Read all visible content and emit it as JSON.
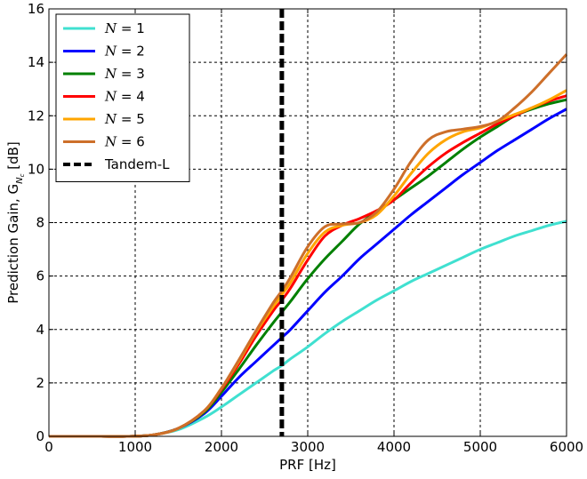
{
  "chart_data": {
    "type": "line",
    "xlabel": "PRF [Hz]",
    "ylabel": "Prediction Gain, G",
    "ylabel_subscript": "N",
    "ylabel_subsubscript": "c",
    "ylabel_unit": " [dB]",
    "xlim": [
      0,
      6000
    ],
    "ylim": [
      0,
      16
    ],
    "xticks": [
      0,
      1000,
      2000,
      3000,
      4000,
      5000,
      6000
    ],
    "yticks": [
      0,
      2,
      4,
      6,
      8,
      10,
      12,
      14,
      16
    ],
    "grid": true,
    "legend_position": "top-left",
    "x": [
      0,
      300,
      600,
      900,
      1200,
      1500,
      1800,
      2000,
      2200,
      2400,
      2600,
      2700,
      2800,
      3000,
      3200,
      3400,
      3600,
      3800,
      4000,
      4200,
      4400,
      4600,
      4800,
      5000,
      5200,
      5400,
      5600,
      5800,
      6000
    ],
    "series": [
      {
        "name": "N = 1",
        "color": "#40e0d0",
        "values": [
          0,
          0,
          0,
          0,
          0.05,
          0.25,
          0.7,
          1.1,
          1.55,
          2.0,
          2.45,
          2.65,
          2.9,
          3.35,
          3.85,
          4.3,
          4.7,
          5.1,
          5.45,
          5.8,
          6.1,
          6.4,
          6.7,
          7.0,
          7.25,
          7.5,
          7.7,
          7.9,
          8.05
        ]
      },
      {
        "name": "N = 2",
        "color": "#0000ff",
        "values": [
          0,
          0,
          0,
          0,
          0.05,
          0.3,
          0.85,
          1.5,
          2.2,
          2.8,
          3.4,
          3.7,
          4.0,
          4.7,
          5.4,
          6.0,
          6.65,
          7.2,
          7.75,
          8.3,
          8.8,
          9.3,
          9.8,
          10.25,
          10.7,
          11.1,
          11.5,
          11.9,
          12.25
        ]
      },
      {
        "name": "N = 3",
        "color": "#008000",
        "values": [
          0,
          0,
          0,
          0,
          0.05,
          0.3,
          0.9,
          1.65,
          2.5,
          3.4,
          4.25,
          4.65,
          5.05,
          5.9,
          6.65,
          7.3,
          7.95,
          8.4,
          8.85,
          9.3,
          9.75,
          10.25,
          10.75,
          11.2,
          11.6,
          12.0,
          12.25,
          12.45,
          12.6
        ]
      },
      {
        "name": "N = 4",
        "color": "#ff0000",
        "values": [
          0,
          0,
          0,
          0,
          0.05,
          0.3,
          0.95,
          1.75,
          2.7,
          3.75,
          4.7,
          5.1,
          5.55,
          6.6,
          7.5,
          7.9,
          8.15,
          8.45,
          8.85,
          9.5,
          10.1,
          10.6,
          11.0,
          11.35,
          11.7,
          12.0,
          12.3,
          12.55,
          12.75
        ]
      },
      {
        "name": "N = 5",
        "color": "#ffa500",
        "values": [
          0,
          0,
          0,
          0,
          0.05,
          0.3,
          0.95,
          1.8,
          2.8,
          3.9,
          4.85,
          5.3,
          5.75,
          6.85,
          7.65,
          7.9,
          8.0,
          8.3,
          9.0,
          9.85,
          10.6,
          11.1,
          11.4,
          11.55,
          11.8,
          12.05,
          12.3,
          12.6,
          12.95
        ]
      },
      {
        "name": "N = 6",
        "color": "#cd6f2a",
        "values": [
          0,
          0,
          0,
          0,
          0.05,
          0.3,
          0.95,
          1.8,
          2.85,
          3.95,
          5.0,
          5.45,
          5.95,
          7.1,
          7.85,
          7.95,
          8.0,
          8.4,
          9.25,
          10.3,
          11.1,
          11.4,
          11.5,
          11.6,
          11.8,
          12.3,
          12.9,
          13.6,
          14.3
        ]
      }
    ],
    "reference_line": {
      "name": "Tandem-L",
      "x": 2700,
      "color": "#000000",
      "style": "dashed"
    }
  }
}
